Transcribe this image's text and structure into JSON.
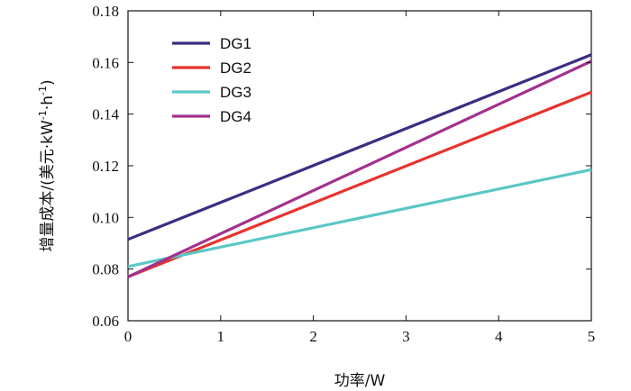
{
  "chart_data": {
    "type": "line",
    "title": "",
    "xlabel": "功率/W",
    "ylabel_parts": {
      "main": "增量成本/(美元·kW",
      "sup1": "-1",
      "mid": "·h",
      "sup2": "-1",
      "end": ")"
    },
    "xlim": [
      0,
      5
    ],
    "ylim": [
      0.06,
      0.18
    ],
    "xticks": [
      0,
      1,
      2,
      3,
      4,
      5
    ],
    "xtick_labels": [
      "0",
      "1",
      "2",
      "3",
      "4",
      "5"
    ],
    "yticks": [
      0.06,
      0.08,
      0.1,
      0.12,
      0.14,
      0.16,
      0.18
    ],
    "ytick_labels": [
      "0.06",
      "0.08",
      "0.10",
      "0.12",
      "0.14",
      "0.16",
      "0.18"
    ],
    "grid": false,
    "legend_position": "top-left",
    "series": [
      {
        "name": "DG1",
        "color": "#3a2e82",
        "x": [
          0,
          5
        ],
        "y": [
          0.0915,
          0.163
        ]
      },
      {
        "name": "DG2",
        "color": "#e8322c",
        "x": [
          0,
          5
        ],
        "y": [
          0.077,
          0.1485
        ]
      },
      {
        "name": "DG3",
        "color": "#5cc6c6",
        "x": [
          0,
          5
        ],
        "y": [
          0.081,
          0.1185
        ]
      },
      {
        "name": "DG4",
        "color": "#a4308c",
        "x": [
          0,
          5
        ],
        "y": [
          0.077,
          0.1605
        ]
      }
    ]
  }
}
